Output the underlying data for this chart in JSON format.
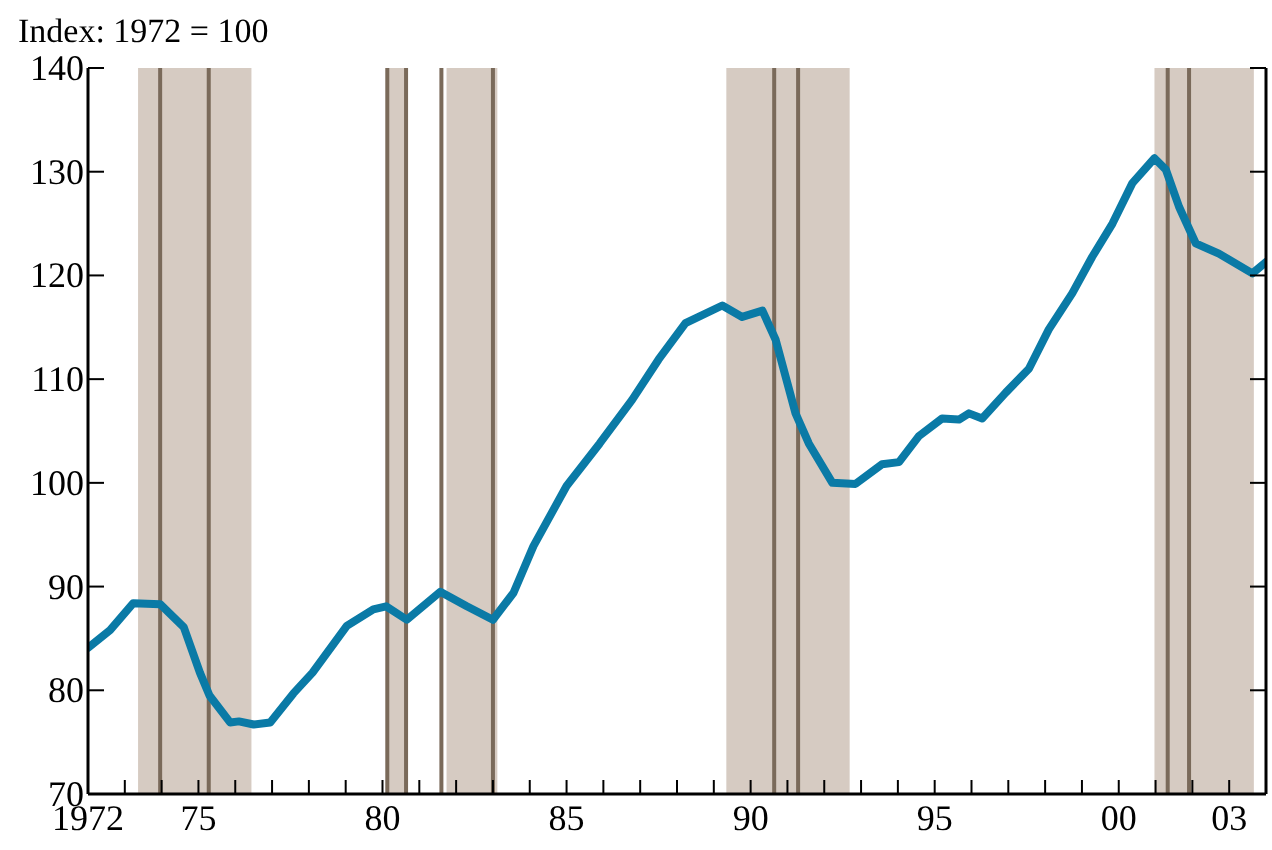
{
  "chart_data": {
    "type": "line",
    "ylabel": "Index: 1972 = 100",
    "x": [
      1972.0,
      1972.6,
      1973.23,
      1973.96,
      1974.6,
      1975.04,
      1975.3,
      1975.86,
      1976.1,
      1976.5,
      1976.95,
      1977.58,
      1978.1,
      1979.03,
      1979.75,
      1980.1,
      1980.66,
      1981.57,
      1982.29,
      1983.0,
      1983.56,
      1984.1,
      1985.0,
      1985.9,
      1986.78,
      1987.5,
      1988.23,
      1989.23,
      1989.77,
      1990.32,
      1990.68,
      1991.22,
      1991.58,
      1992.22,
      1992.85,
      1993.57,
      1994.03,
      1994.57,
      1995.2,
      1995.66,
      1995.93,
      1996.29,
      1996.93,
      1997.56,
      1998.1,
      1998.74,
      1999.28,
      1999.83,
      2000.37,
      2000.97,
      2001.28,
      2001.64,
      2002.09,
      2002.72,
      2003.63,
      2004.0
    ],
    "series": [
      {
        "color": "#0a7aa6",
        "values": [
          84.1,
          85.8,
          88.4,
          88.3,
          86.1,
          81.7,
          79.5,
          76.9,
          77.0,
          76.7,
          76.9,
          79.7,
          81.7,
          86.2,
          87.8,
          88.1,
          86.8,
          89.5,
          88.1,
          86.8,
          89.4,
          93.9,
          99.7,
          103.8,
          108.0,
          111.9,
          115.4,
          117.1,
          116.0,
          116.6,
          113.8,
          106.7,
          103.8,
          100.0,
          99.9,
          101.8,
          102.0,
          104.5,
          106.2,
          106.1,
          106.7,
          106.2,
          108.7,
          111.0,
          114.8,
          118.3,
          121.8,
          125.0,
          128.9,
          131.3,
          130.2,
          126.6,
          123.1,
          122.1,
          120.2,
          121.3
        ]
      }
    ],
    "xlim": [
      1972,
      2004
    ],
    "xticks": [
      {
        "value": 1972,
        "label": "1972"
      },
      {
        "value": 1973,
        "label": null
      },
      {
        "value": 1974,
        "label": null
      },
      {
        "value": 1975,
        "label": "75"
      },
      {
        "value": 1976,
        "label": null
      },
      {
        "value": 1977,
        "label": null
      },
      {
        "value": 1978,
        "label": null
      },
      {
        "value": 1979,
        "label": null
      },
      {
        "value": 1980,
        "label": "80"
      },
      {
        "value": 1981,
        "label": null
      },
      {
        "value": 1982,
        "label": null
      },
      {
        "value": 1983,
        "label": null
      },
      {
        "value": 1984,
        "label": null
      },
      {
        "value": 1985,
        "label": "85"
      },
      {
        "value": 1986,
        "label": null
      },
      {
        "value": 1987,
        "label": null
      },
      {
        "value": 1988,
        "label": null
      },
      {
        "value": 1989,
        "label": null
      },
      {
        "value": 1990,
        "label": "90"
      },
      {
        "value": 1991,
        "label": null
      },
      {
        "value": 1992,
        "label": null
      },
      {
        "value": 1993,
        "label": null
      },
      {
        "value": 1994,
        "label": null
      },
      {
        "value": 1995,
        "label": "95"
      },
      {
        "value": 1996,
        "label": null
      },
      {
        "value": 1997,
        "label": null
      },
      {
        "value": 1998,
        "label": null
      },
      {
        "value": 1999,
        "label": null
      },
      {
        "value": 2000,
        "label": "00"
      },
      {
        "value": 2001,
        "label": null
      },
      {
        "value": 2002,
        "label": null
      },
      {
        "value": 2003,
        "label": "03"
      }
    ],
    "ylim": [
      70,
      140
    ],
    "yticks": [
      70,
      80,
      90,
      100,
      110,
      120,
      130,
      140
    ],
    "grid": false,
    "legend": false,
    "marker": "none",
    "line_style": "solid",
    "bands": [
      {
        "axis": "x",
        "from": 1973.36,
        "to": 1976.44,
        "color": "#d6cbc2"
      },
      {
        "axis": "x",
        "from": 1980.13,
        "to": 1980.64,
        "color": "#d6cbc2"
      },
      {
        "axis": "x",
        "from": 1981.74,
        "to": 1983.12,
        "color": "#d6cbc2"
      },
      {
        "axis": "x",
        "from": 1989.34,
        "to": 1992.69,
        "color": "#d6cbc2"
      },
      {
        "axis": "x",
        "from": 2000.97,
        "to": 2003.67,
        "color": "#d6cbc2"
      }
    ],
    "ref_lines": [
      {
        "axis": "x",
        "value": 1973.96,
        "color": "#7a6a5a"
      },
      {
        "axis": "x",
        "value": 1975.28,
        "color": "#7a6a5a"
      },
      {
        "axis": "x",
        "value": 1980.13,
        "color": "#7a6a5a"
      },
      {
        "axis": "x",
        "value": 1980.64,
        "color": "#7a6a5a"
      },
      {
        "axis": "x",
        "value": 1981.6,
        "color": "#7a6a5a"
      },
      {
        "axis": "x",
        "value": 1983.0,
        "color": "#7a6a5a"
      },
      {
        "axis": "x",
        "value": 1990.64,
        "color": "#7a6a5a"
      },
      {
        "axis": "x",
        "value": 1991.29,
        "color": "#7a6a5a"
      },
      {
        "axis": "x",
        "value": 2001.33,
        "color": "#7a6a5a"
      },
      {
        "axis": "x",
        "value": 2001.91,
        "color": "#7a6a5a"
      }
    ]
  }
}
